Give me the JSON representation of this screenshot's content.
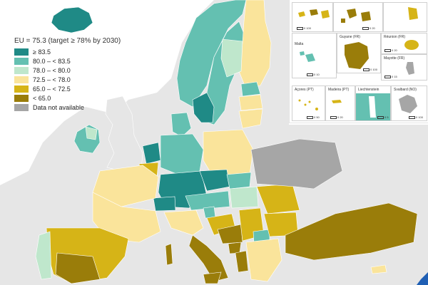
{
  "legend": {
    "title": "EU = 75.3 (target ≥ 78% by 2030)",
    "items": [
      {
        "label": "≥ 83.5",
        "color": "#1f8a86"
      },
      {
        "label": "80.0 – < 83.5",
        "color": "#64c0b1"
      },
      {
        "label": "78.0 – < 80.0",
        "color": "#bfe7cc"
      },
      {
        "label": "72.5 – < 78.0",
        "color": "#fae49b"
      },
      {
        "label": "65.0 – < 72.5",
        "color": "#d6b417"
      },
      {
        "label": "< 65.0",
        "color": "#9a7d0a"
      },
      {
        "label": "Data not available",
        "color": "#a6a6a6"
      }
    ]
  },
  "colors": {
    "sea": "#ffffff",
    "non_eu": "#e6e6e6",
    "na": "#a6a6a6",
    "border": "#ffffff"
  },
  "insets": {
    "top_scale": "0  100",
    "guadeloupe_scale": "0  20",
    "malta": {
      "title": "Malta",
      "scale": "0  10"
    },
    "guyane": {
      "title": "Guyane (FR)",
      "scale": "0  100"
    },
    "reunion": {
      "title": "Réunion (FR)",
      "scale": "0  20"
    },
    "mayotte": {
      "title": "Mayotte (FR)",
      "scale": "0  15"
    },
    "acores": {
      "title": "Açores (PT)",
      "scale": "0  50"
    },
    "madeira": {
      "title": "Madeira (PT)",
      "scale": "0  20"
    },
    "liechtenstein": {
      "title": "Liechtenstein",
      "scale": "0  5"
    },
    "svalbard": {
      "title": "Svalbard (NO)",
      "scale": "0  100"
    }
  }
}
